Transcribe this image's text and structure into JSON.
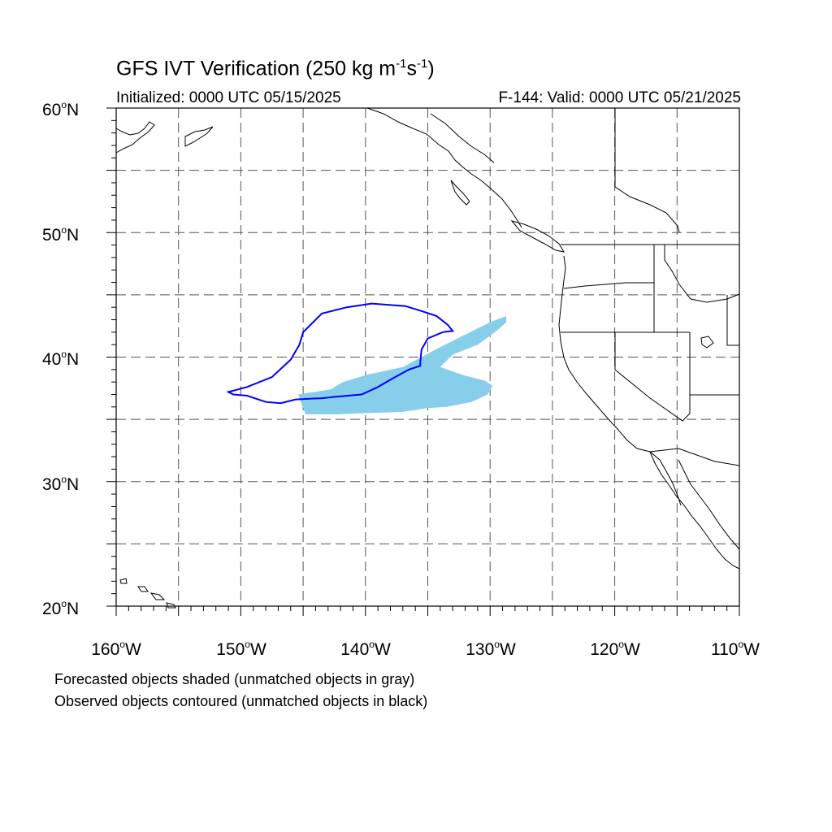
{
  "title": {
    "main": "GFS IVT Verification (250 kg m",
    "exp1": "-1",
    "mid": "s",
    "exp2": "-1",
    "end": ")"
  },
  "initialized": "Initialized: 0000 UTC 05/15/2025",
  "valid": "F-144: Valid: 0000 UTC 05/21/2025",
  "map": {
    "lon_range": [
      -160,
      -110
    ],
    "lat_range": [
      20,
      60
    ],
    "projection": "cylindrical equidistant",
    "grid": "dashed every 5 degrees",
    "lat_labels": [
      {
        "num": "60",
        "suffix": "N"
      },
      {
        "num": "50",
        "suffix": "N"
      },
      {
        "num": "40",
        "suffix": "N"
      },
      {
        "num": "30",
        "suffix": "N"
      },
      {
        "num": "20",
        "suffix": "N"
      }
    ],
    "lon_labels": [
      {
        "num": "160",
        "suffix": "W"
      },
      {
        "num": "150",
        "suffix": "W"
      },
      {
        "num": "140",
        "suffix": "W"
      },
      {
        "num": "130",
        "suffix": "W"
      },
      {
        "num": "120",
        "suffix": "W"
      },
      {
        "num": "110",
        "suffix": "W"
      }
    ]
  },
  "objects": {
    "forecast_color": "#87ceeb",
    "observed_color": "#0000ff",
    "forecast_shaded": [
      [
        [
          -145.4,
          37.0
        ],
        [
          -142.8,
          37.4
        ],
        [
          -141.8,
          38.0
        ],
        [
          -139.8,
          38.6
        ],
        [
          -137.0,
          39.2
        ],
        [
          -135.5,
          40.0
        ],
        [
          -134.0,
          40.8
        ],
        [
          -132.0,
          41.8
        ],
        [
          -130.0,
          42.8
        ],
        [
          -128.7,
          43.3
        ],
        [
          -128.7,
          42.8
        ],
        [
          -129.6,
          42.0
        ],
        [
          -131.0,
          41.0
        ],
        [
          -133.0,
          40.2
        ],
        [
          -134.0,
          39.2
        ],
        [
          -132.0,
          38.5
        ],
        [
          -130.4,
          38.1
        ],
        [
          -129.8,
          37.7
        ],
        [
          -130.2,
          37.0
        ],
        [
          -131.5,
          36.4
        ],
        [
          -133.5,
          36.0
        ],
        [
          -135.0,
          35.9
        ],
        [
          -137.0,
          35.6
        ],
        [
          -140.0,
          35.5
        ],
        [
          -142.5,
          35.4
        ],
        [
          -144.8,
          35.4
        ],
        [
          -145.1,
          36.2
        ]
      ]
    ],
    "observed_contours": [
      [
        [
          -151.0,
          37.2
        ],
        [
          -149.5,
          37.6
        ],
        [
          -147.5,
          38.4
        ],
        [
          -146.0,
          39.8
        ],
        [
          -145.3,
          41.0
        ],
        [
          -145.0,
          42.0
        ],
        [
          -143.5,
          43.5
        ],
        [
          -141.5,
          44.0
        ],
        [
          -139.5,
          44.3
        ],
        [
          -136.8,
          44.1
        ],
        [
          -135.5,
          43.7
        ],
        [
          -134.3,
          43.3
        ],
        [
          -133.4,
          42.6
        ],
        [
          -133.0,
          42.1
        ],
        [
          -133.8,
          42.0
        ],
        [
          -135.0,
          41.5
        ],
        [
          -135.5,
          40.6
        ],
        [
          -135.6,
          39.6
        ],
        [
          -135.6,
          39.3
        ],
        [
          -136.5,
          39.0
        ],
        [
          -137.8,
          38.3
        ],
        [
          -139.0,
          37.6
        ],
        [
          -140.3,
          37.0
        ],
        [
          -142.5,
          36.8
        ],
        [
          -143.5,
          36.7
        ],
        [
          -145.6,
          36.6
        ],
        [
          -146.8,
          36.3
        ],
        [
          -148.0,
          36.4
        ],
        [
          -149.5,
          36.9
        ],
        [
          -150.6,
          37.0
        ]
      ]
    ]
  },
  "legend": {
    "line1": "Forecasted objects shaded (unmatched objects in gray)",
    "line2": "Observed objects contoured (unmatched objects in black)"
  }
}
